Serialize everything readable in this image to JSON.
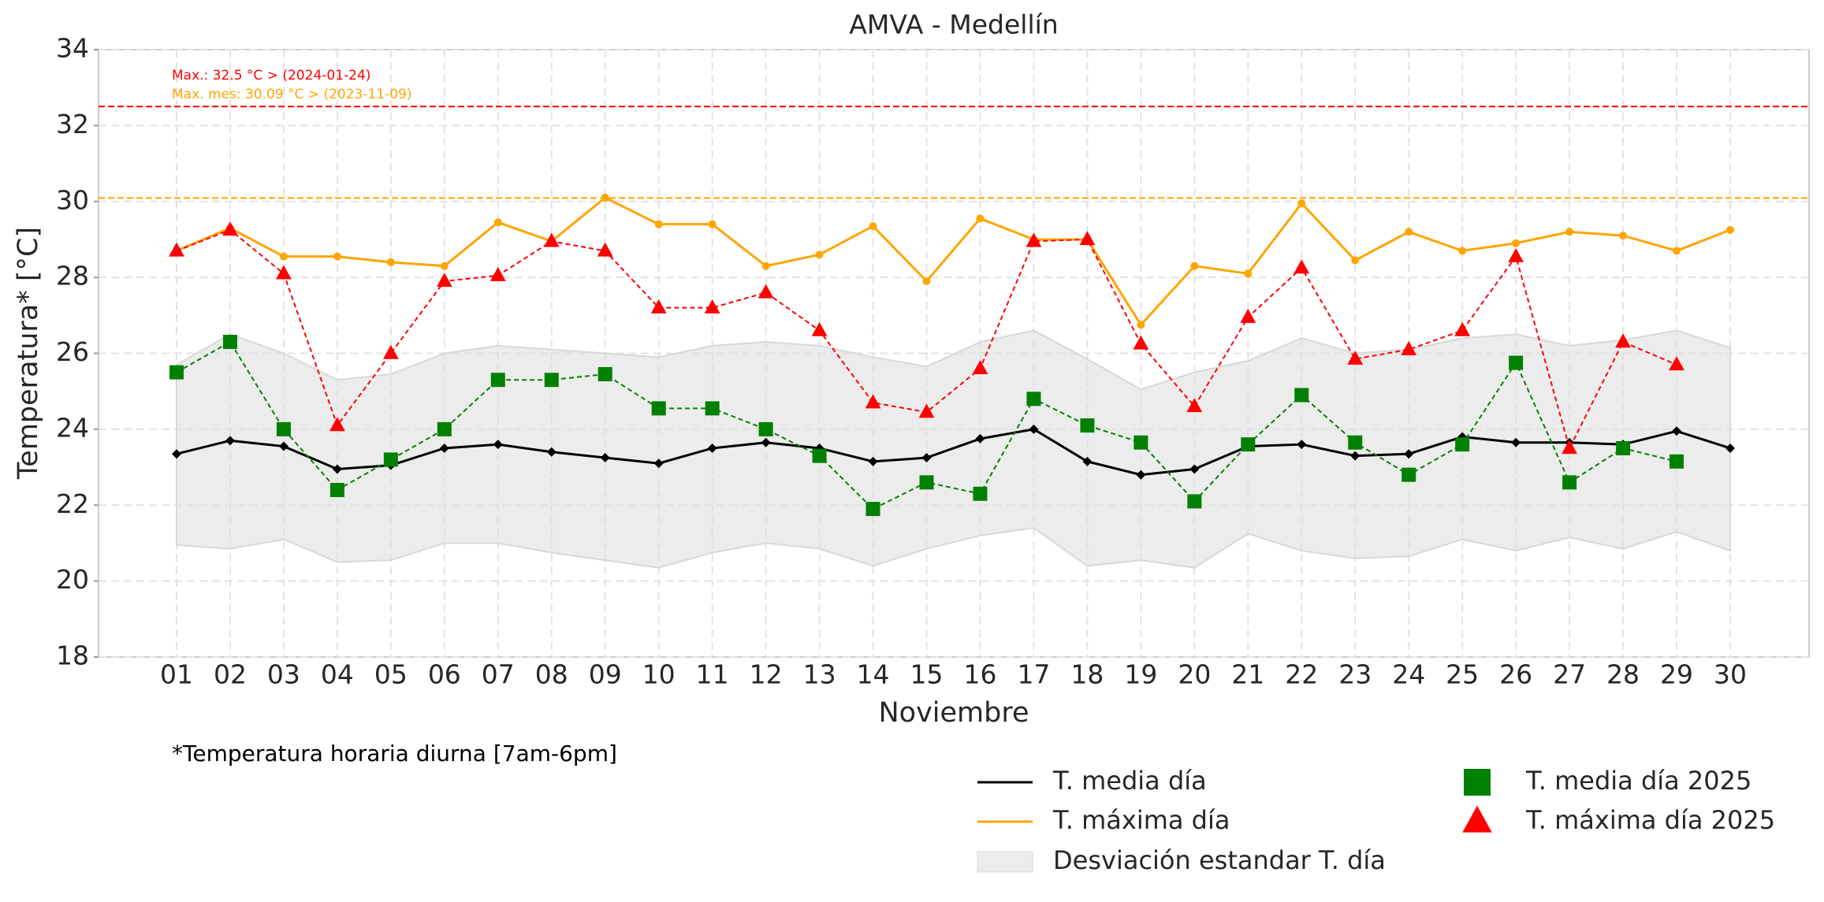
{
  "chart_data": {
    "type": "line",
    "title": "AMVA - Medellín",
    "xlabel": "Noviembre",
    "ylabel": "Temperatura* [°C]",
    "note": "*Temperatura horaria diurna [7am-6pm]",
    "categories": [
      "01",
      "02",
      "03",
      "04",
      "05",
      "06",
      "07",
      "08",
      "09",
      "10",
      "11",
      "12",
      "13",
      "14",
      "15",
      "16",
      "17",
      "18",
      "19",
      "20",
      "21",
      "22",
      "23",
      "24",
      "25",
      "26",
      "27",
      "28",
      "29",
      "30"
    ],
    "ylim": [
      18,
      34
    ],
    "yticks": [
      18,
      20,
      22,
      24,
      26,
      28,
      30,
      32,
      34
    ],
    "grid": true,
    "band": {
      "name": "Desviación estandar T. día",
      "color": "#e0e0e0",
      "upper": [
        25.7,
        26.5,
        26.0,
        25.3,
        25.45,
        26.0,
        26.2,
        26.1,
        26.0,
        25.9,
        26.2,
        26.3,
        26.2,
        25.9,
        25.65,
        26.3,
        26.6,
        25.85,
        25.05,
        25.5,
        25.8,
        26.4,
        26.0,
        26.1,
        26.4,
        26.5,
        26.2,
        26.35,
        26.6,
        26.15
      ],
      "lower": [
        20.95,
        20.85,
        21.1,
        20.5,
        20.55,
        21.0,
        21.0,
        20.75,
        20.55,
        20.35,
        20.75,
        21.0,
        20.85,
        20.4,
        20.85,
        21.2,
        21.4,
        20.4,
        20.55,
        20.35,
        21.25,
        20.8,
        20.6,
        20.65,
        21.1,
        20.8,
        21.15,
        20.85,
        21.3,
        20.8
      ]
    },
    "hlines": [
      {
        "value": 32.5,
        "color": "#ff0000",
        "label": "Max.: 32.5 °C  >  (2024-01-24)"
      },
      {
        "value": 30.09,
        "color": "#ffa500",
        "label": "Max. mes: 30.09 °C  >  (2023-11-09)"
      }
    ],
    "series": [
      {
        "name": "T. media día",
        "color": "#000000",
        "style": "solid",
        "marker": "diamond",
        "values": [
          23.35,
          23.7,
          23.55,
          22.95,
          23.05,
          23.5,
          23.6,
          23.4,
          23.25,
          23.1,
          23.5,
          23.65,
          23.5,
          23.15,
          23.25,
          23.75,
          24.0,
          23.15,
          22.8,
          22.95,
          23.55,
          23.6,
          23.3,
          23.35,
          23.8,
          23.65,
          23.65,
          23.6,
          23.95,
          23.5
        ]
      },
      {
        "name": "T. máxima día",
        "color": "#ffa500",
        "style": "solid",
        "marker": "circle",
        "values": [
          28.7,
          29.3,
          28.55,
          28.55,
          28.4,
          28.3,
          29.45,
          28.95,
          30.1,
          29.4,
          29.4,
          28.3,
          28.6,
          29.35,
          27.9,
          29.55,
          29.0,
          29.0,
          26.75,
          28.3,
          28.1,
          29.95,
          28.45,
          29.2,
          28.7,
          28.9,
          29.2,
          29.1,
          28.7,
          29.25
        ]
      },
      {
        "name": "T. media día 2025",
        "color": "#008000",
        "style": "dashed",
        "marker": "square",
        "values": [
          25.5,
          26.3,
          24.0,
          22.4,
          23.2,
          24.0,
          25.3,
          25.3,
          25.45,
          24.55,
          24.55,
          24.0,
          23.3,
          21.9,
          22.6,
          22.3,
          24.8,
          24.1,
          23.65,
          22.1,
          23.6,
          24.9,
          23.65,
          22.8,
          23.6,
          25.75,
          22.6,
          23.5,
          23.15,
          null
        ]
      },
      {
        "name": "T. máxima día 2025",
        "color": "#ff0000",
        "style": "dashed",
        "marker": "triangle",
        "values": [
          28.7,
          29.25,
          28.1,
          24.1,
          26.0,
          27.9,
          28.05,
          28.95,
          28.7,
          27.2,
          27.2,
          27.6,
          26.6,
          24.7,
          24.45,
          25.6,
          28.95,
          29.0,
          26.25,
          24.6,
          26.95,
          28.25,
          25.85,
          26.1,
          26.6,
          28.55,
          23.5,
          26.3,
          25.7,
          null
        ]
      }
    ]
  }
}
